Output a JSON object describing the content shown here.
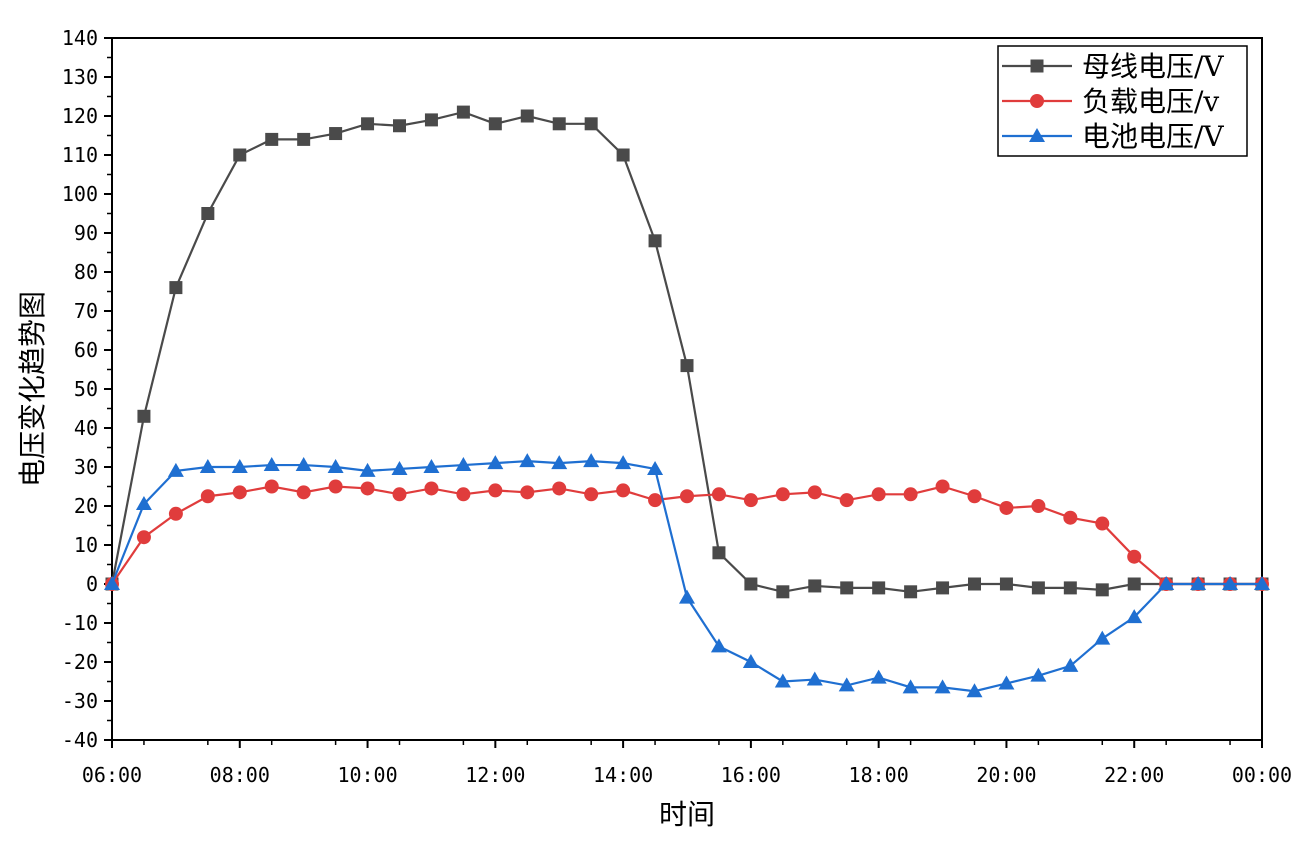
{
  "chart_data": {
    "type": "line",
    "title": "",
    "xlabel": "时间",
    "ylabel": "电压变化趋势图",
    "x_ticks": [
      "06:00",
      "08:00",
      "10:00",
      "12:00",
      "14:00",
      "16:00",
      "18:00",
      "20:00",
      "22:00",
      "00:00"
    ],
    "xlim": [
      "06:00",
      "00:00"
    ],
    "ylim": [
      -40,
      140
    ],
    "y_ticks": [
      -40,
      -30,
      -20,
      -10,
      0,
      10,
      20,
      30,
      40,
      50,
      60,
      70,
      80,
      90,
      100,
      110,
      120,
      130,
      140
    ],
    "grid": false,
    "legend_position": "top-right",
    "x": [
      "06:00",
      "06:30",
      "07:00",
      "07:30",
      "08:00",
      "08:30",
      "09:00",
      "09:30",
      "10:00",
      "10:30",
      "11:00",
      "11:30",
      "12:00",
      "12:30",
      "13:00",
      "13:30",
      "14:00",
      "14:30",
      "15:00",
      "15:30",
      "16:00",
      "16:30",
      "17:00",
      "17:30",
      "18:00",
      "18:30",
      "19:00",
      "19:30",
      "20:00",
      "20:30",
      "21:00",
      "21:30",
      "22:00",
      "22:30",
      "23:00",
      "23:30",
      "00:00"
    ],
    "series": [
      {
        "name": "母线电压/V",
        "color": "#4a4a4a",
        "marker": "square",
        "values": [
          0,
          43,
          76,
          95,
          110,
          114,
          114,
          115.5,
          118,
          117.5,
          119,
          121,
          118,
          120,
          118,
          118,
          110,
          88,
          56,
          8,
          0,
          -2,
          -0.5,
          -1,
          -1,
          -2,
          -1,
          0,
          0,
          -1,
          -1,
          -1.5,
          0,
          0,
          0,
          0,
          0
        ]
      },
      {
        "name": "负载电压/v",
        "color": "#e03c3c",
        "marker": "circle",
        "values": [
          0,
          12,
          18,
          22.5,
          23.5,
          25,
          23.5,
          25,
          24.5,
          23,
          24.5,
          23,
          24,
          23.5,
          24.5,
          23,
          24,
          21.5,
          22.5,
          23,
          21.5,
          23,
          23.5,
          21.5,
          23,
          23,
          25,
          22.5,
          19.5,
          20,
          17,
          15.5,
          7,
          0,
          0,
          0,
          0
        ]
      },
      {
        "name": "电池电压/V",
        "color": "#1f6fd1",
        "marker": "triangle",
        "values": [
          0,
          20.5,
          29,
          30,
          30,
          30.5,
          30.5,
          30,
          29,
          29.5,
          30,
          30.5,
          31,
          31.5,
          31,
          31.5,
          31,
          29.5,
          -3.5,
          -16,
          -20,
          -25,
          -24.5,
          -26,
          -24,
          -26.5,
          -26.5,
          -27.5,
          -25.5,
          -23.5,
          -21,
          -14,
          -8.5,
          0,
          0,
          0,
          0
        ]
      }
    ]
  }
}
